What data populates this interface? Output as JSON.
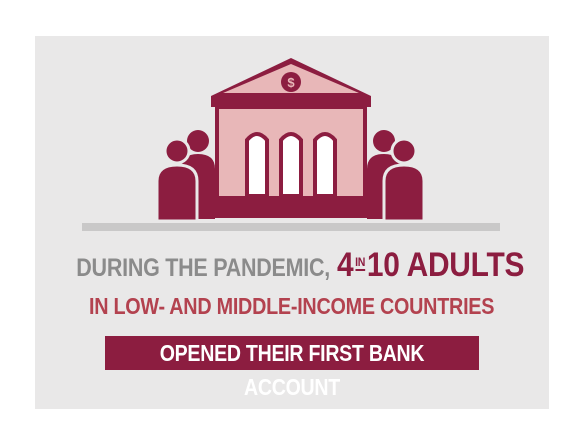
{
  "headline": {
    "line1_prefix": "DURING THE PANDEMIC,",
    "line1_number": "4",
    "line1_in": "IN",
    "line1_suffix": "10 ADULTS",
    "line2": "IN LOW- AND MIDDLE-INCOME COUNTRIES",
    "banner": "OPENED THEIR FIRST BANK ACCOUNT"
  },
  "icons": {
    "bank": "bank-building-icon",
    "currency": "dollar-sign-icon",
    "people_left": "people-group-icon",
    "people_right": "people-group-icon",
    "currency_symbol": "$"
  },
  "colors": {
    "maroon": "#8c1d40",
    "light_maroon": "#b3424f",
    "pink": "#e8b7b8",
    "grey_text": "#8b8b8b",
    "card_bg": "#e9e8e8"
  }
}
